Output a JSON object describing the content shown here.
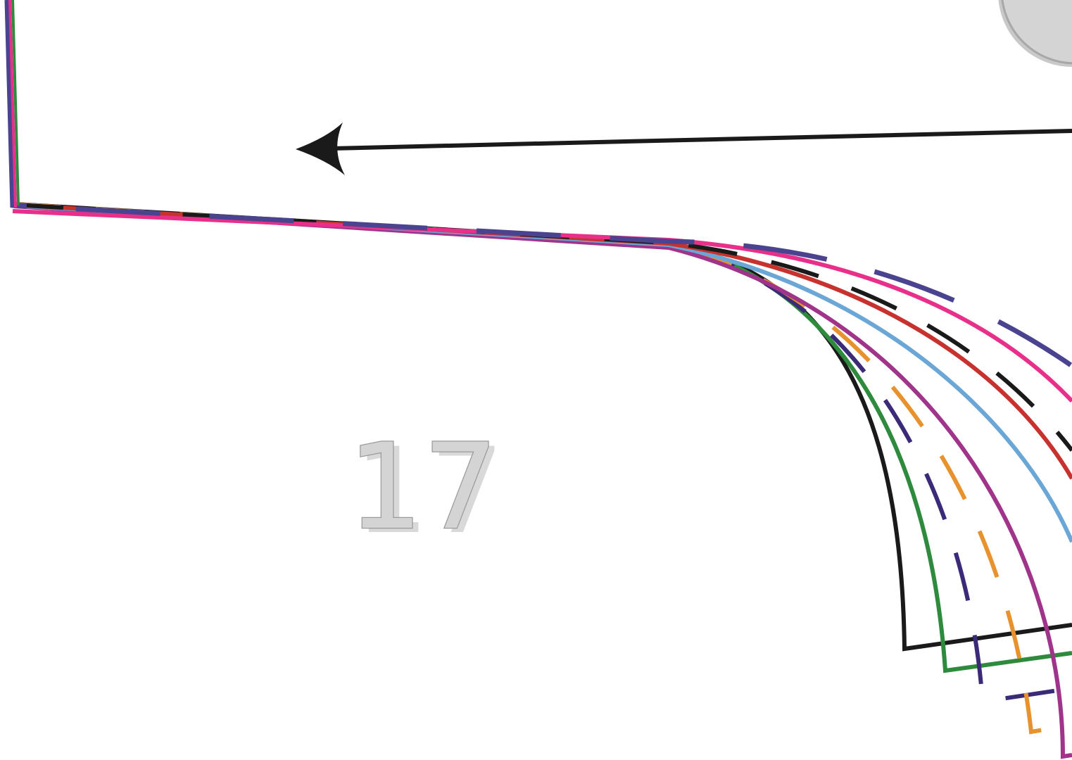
{
  "pattern": {
    "piece_number": "17",
    "palette": {
      "black": "#1a1a1a",
      "green": "#2e8b3e",
      "navy": "#3a2a78",
      "orange": "#e8922e",
      "magenta": "#a0348a",
      "blue": "#6aa6d6",
      "red": "#c8322e",
      "pink": "#e8308a",
      "slate": "#4a4490",
      "marker_fill": "#d4d4d4",
      "marker_stroke": "#a8a8a8"
    },
    "lines": [
      {
        "name": "size-line-black-solid",
        "color": "black",
        "style": "solid"
      },
      {
        "name": "size-line-green-solid",
        "color": "green",
        "style": "solid"
      },
      {
        "name": "size-line-navy-dashed",
        "color": "navy",
        "style": "dashed"
      },
      {
        "name": "size-line-orange-dashed",
        "color": "orange",
        "style": "dashed"
      },
      {
        "name": "size-line-magenta-solid",
        "color": "magenta",
        "style": "solid"
      },
      {
        "name": "size-line-blue-solid",
        "color": "blue",
        "style": "solid"
      },
      {
        "name": "size-line-red-solid",
        "color": "red",
        "style": "solid"
      },
      {
        "name": "size-line-black-dashed",
        "color": "black",
        "style": "dashed"
      },
      {
        "name": "size-line-pink-solid",
        "color": "pink",
        "style": "solid"
      },
      {
        "name": "size-line-slate-dashed",
        "color": "slate",
        "style": "long-dashed"
      }
    ],
    "grainline": {
      "direction": "left",
      "color": "black"
    },
    "marker": {
      "shape": "circle",
      "color": "marker_fill"
    }
  }
}
